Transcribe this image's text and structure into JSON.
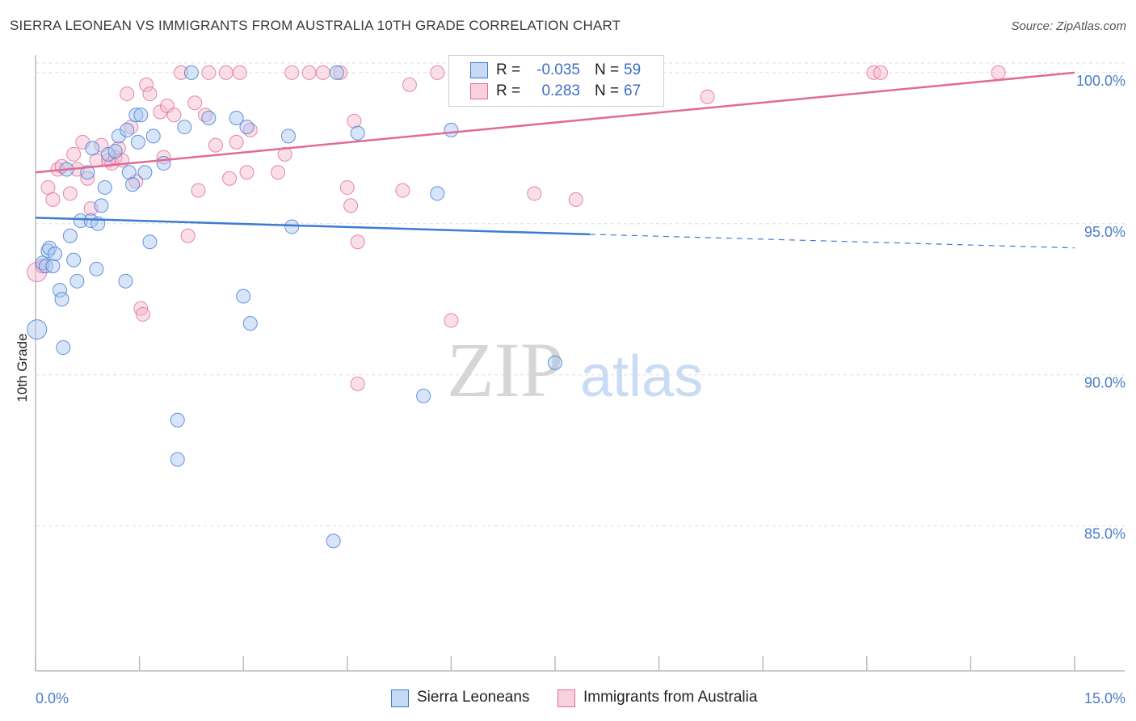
{
  "title": "SIERRA LEONEAN VS IMMIGRANTS FROM AUSTRALIA 10TH GRADE CORRELATION CHART",
  "source": "Source: ZipAtlas.com",
  "watermark": {
    "zip": "ZIP",
    "atlas": "atlas"
  },
  "colors": {
    "blue": "#3e7bd1",
    "blue_fill": "#a9c6f0",
    "blue_text": "#3d6fc4",
    "pink": "#e16b95",
    "pink_fill": "#f4b6cb",
    "grid": "#dddddd",
    "axis": "#bbbbbb"
  },
  "legend": [
    {
      "r_label": "R =",
      "r_value": "-0.035",
      "n_label": "N =",
      "n_value": "59"
    },
    {
      "r_label": "R =",
      "r_value": "0.283",
      "n_label": "N =",
      "n_value": "67"
    }
  ],
  "bottom_legend": [
    {
      "label": "Sierra Leoneans"
    },
    {
      "label": "Immigrants from Australia"
    }
  ],
  "chart_data": {
    "type": "scatter",
    "title": "SIERRA LEONEAN VS IMMIGRANTS FROM AUSTRALIA 10TH GRADE CORRELATION CHART",
    "xlabel": "",
    "ylabel": "10th Grade",
    "xlim": [
      0,
      15
    ],
    "ylim": [
      80.2,
      100.8
    ],
    "x_tick_labels": [
      {
        "value": 0,
        "label": "0.0%"
      },
      {
        "value": 15,
        "label": "15.0%"
      }
    ],
    "x_minor_ticks": [
      0,
      1.5,
      3,
      4.5,
      6,
      7.5,
      9,
      10.5,
      12,
      13.5,
      15
    ],
    "y_ticks": [
      {
        "value": 85,
        "label": "85.0%"
      },
      {
        "value": 90,
        "label": "90.0%"
      },
      {
        "value": 95,
        "label": "95.0%"
      },
      {
        "value": 100,
        "label": "100.0%"
      }
    ],
    "grid": true,
    "legend_position": "top-center",
    "series": [
      {
        "name": "Sierra Leoneans",
        "color": "blue",
        "trend": {
          "x0": 0,
          "y0": 95.2,
          "x1": 8.0,
          "y1": 94.65,
          "dash_to_x": 15,
          "dash_to_y": 94.2
        },
        "points": [
          [
            0.02,
            91.5
          ],
          [
            0.1,
            93.7
          ],
          [
            0.15,
            93.6
          ],
          [
            0.18,
            94.1
          ],
          [
            0.2,
            94.2
          ],
          [
            0.25,
            93.6
          ],
          [
            0.28,
            94.0
          ],
          [
            0.35,
            92.8
          ],
          [
            0.38,
            92.5
          ],
          [
            0.4,
            90.9
          ],
          [
            0.45,
            96.8
          ],
          [
            0.5,
            94.6
          ],
          [
            0.55,
            93.8
          ],
          [
            0.6,
            93.1
          ],
          [
            0.65,
            95.1
          ],
          [
            0.75,
            96.7
          ],
          [
            0.8,
            95.1
          ],
          [
            0.82,
            97.5
          ],
          [
            0.88,
            93.5
          ],
          [
            0.9,
            95.0
          ],
          [
            0.95,
            95.6
          ],
          [
            1.0,
            96.2
          ],
          [
            1.05,
            97.3
          ],
          [
            1.15,
            97.4
          ],
          [
            1.2,
            97.9
          ],
          [
            1.3,
            93.1
          ],
          [
            1.32,
            98.1
          ],
          [
            1.35,
            96.7
          ],
          [
            1.4,
            96.3
          ],
          [
            1.45,
            98.6
          ],
          [
            1.48,
            97.7
          ],
          [
            1.52,
            98.6
          ],
          [
            1.58,
            96.7
          ],
          [
            1.65,
            94.4
          ],
          [
            1.7,
            97.9
          ],
          [
            1.85,
            97.0
          ],
          [
            2.05,
            88.5
          ],
          [
            2.05,
            87.2
          ],
          [
            2.15,
            98.2
          ],
          [
            2.25,
            100.0
          ],
          [
            2.5,
            98.5
          ],
          [
            2.9,
            98.5
          ],
          [
            3.0,
            92.6
          ],
          [
            3.05,
            98.2
          ],
          [
            3.1,
            91.7
          ],
          [
            3.65,
            97.9
          ],
          [
            3.7,
            94.9
          ],
          [
            4.3,
            84.5
          ],
          [
            4.35,
            100.0
          ],
          [
            4.65,
            98.0
          ],
          [
            5.6,
            89.3
          ],
          [
            5.8,
            96.0
          ],
          [
            6.0,
            98.1
          ],
          [
            7.5,
            90.4
          ]
        ]
      },
      {
        "name": "Immigrants from Australia",
        "color": "pink",
        "trend": {
          "x0": 0,
          "y0": 96.7,
          "x1": 15,
          "y1": 100.0
        },
        "points": [
          [
            0.02,
            93.4
          ],
          [
            0.1,
            93.6
          ],
          [
            0.18,
            96.2
          ],
          [
            0.25,
            95.8
          ],
          [
            0.32,
            96.8
          ],
          [
            0.38,
            96.9
          ],
          [
            0.5,
            96.0
          ],
          [
            0.55,
            97.3
          ],
          [
            0.6,
            96.8
          ],
          [
            0.68,
            97.7
          ],
          [
            0.75,
            96.5
          ],
          [
            0.8,
            95.5
          ],
          [
            0.88,
            97.1
          ],
          [
            0.95,
            97.6
          ],
          [
            1.05,
            97.1
          ],
          [
            1.1,
            97.0
          ],
          [
            1.15,
            97.2
          ],
          [
            1.2,
            97.5
          ],
          [
            1.25,
            97.1
          ],
          [
            1.32,
            99.3
          ],
          [
            1.38,
            98.2
          ],
          [
            1.45,
            96.4
          ],
          [
            1.52,
            92.2
          ],
          [
            1.55,
            92.0
          ],
          [
            1.6,
            99.6
          ],
          [
            1.65,
            99.3
          ],
          [
            1.8,
            98.7
          ],
          [
            1.85,
            97.2
          ],
          [
            1.9,
            98.9
          ],
          [
            2.0,
            98.6
          ],
          [
            2.1,
            100.0
          ],
          [
            2.2,
            94.6
          ],
          [
            2.3,
            99.0
          ],
          [
            2.35,
            96.1
          ],
          [
            2.45,
            98.6
          ],
          [
            2.5,
            100.0
          ],
          [
            2.6,
            97.6
          ],
          [
            2.75,
            100.0
          ],
          [
            2.8,
            96.5
          ],
          [
            2.9,
            97.7
          ],
          [
            2.95,
            100.0
          ],
          [
            3.05,
            96.7
          ],
          [
            3.1,
            98.1
          ],
          [
            3.5,
            96.7
          ],
          [
            3.6,
            97.3
          ],
          [
            3.7,
            100.0
          ],
          [
            3.95,
            100.0
          ],
          [
            4.15,
            100.0
          ],
          [
            4.4,
            100.0
          ],
          [
            4.5,
            96.2
          ],
          [
            4.55,
            95.6
          ],
          [
            4.6,
            98.4
          ],
          [
            4.65,
            94.4
          ],
          [
            4.65,
            89.7
          ],
          [
            5.3,
            96.1
          ],
          [
            5.4,
            99.6
          ],
          [
            5.8,
            100.0
          ],
          [
            6.0,
            91.8
          ],
          [
            6.2,
            100.0
          ],
          [
            7.2,
            96.0
          ],
          [
            7.8,
            95.8
          ],
          [
            9.7,
            99.2
          ],
          [
            12.1,
            100.0
          ],
          [
            12.2,
            100.0
          ],
          [
            13.9,
            100.0
          ]
        ]
      }
    ]
  }
}
